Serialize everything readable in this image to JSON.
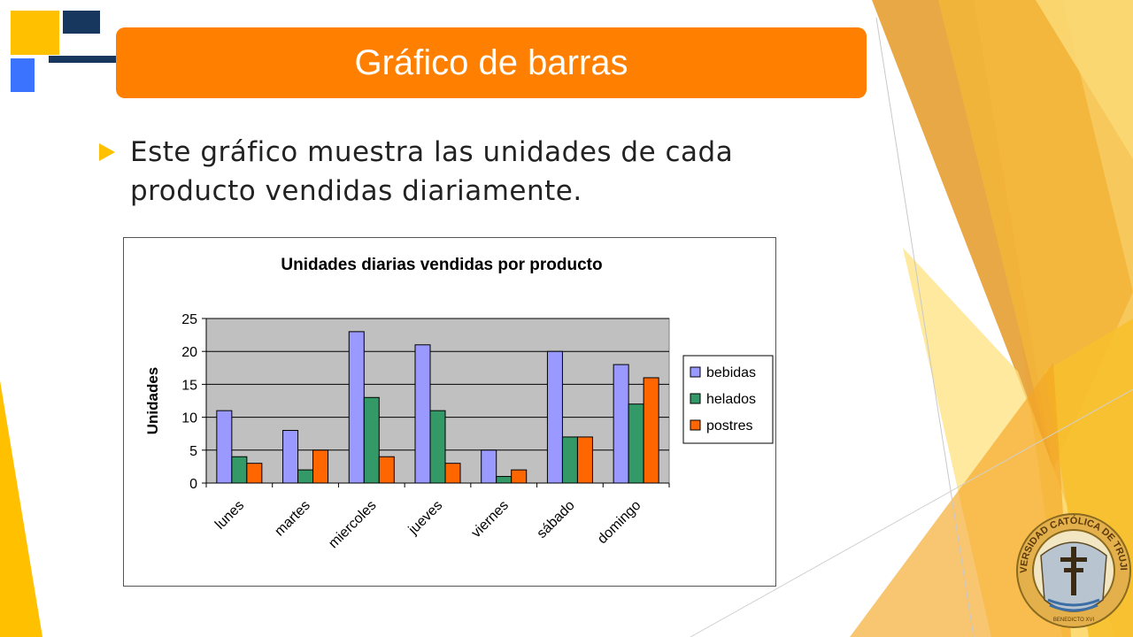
{
  "slide": {
    "title": "Gráfico de barras",
    "bullet": "Este gráfico muestra las unidades de cada producto vendidas diariamente."
  },
  "colors": {
    "title_bar": "#ff7f00",
    "bullet_arrow": "#ffc000",
    "accent_yellow": "#ffc000",
    "accent_blue": "#17375e",
    "plot_area": "#c0c0c0"
  },
  "logo": {
    "ring_text": "UNIVERSIDAD CATÓLICA DE TRUJILLO",
    "motto": "BENEDICTO XVI"
  },
  "chart_data": {
    "type": "bar",
    "title": "Unidades diarias vendidas por producto",
    "xlabel": "",
    "ylabel": "Unidades",
    "ylim": [
      0,
      25
    ],
    "yticks": [
      0,
      5,
      10,
      15,
      20,
      25
    ],
    "grid": true,
    "legend_position": "right",
    "categories": [
      "lunes",
      "martes",
      "miercoles",
      "jueves",
      "viernes",
      "sábado",
      "domingo"
    ],
    "series": [
      {
        "name": "bebidas",
        "color": "#9999ff",
        "values": [
          11,
          8,
          23,
          21,
          5,
          20,
          18
        ]
      },
      {
        "name": "helados",
        "color": "#339966",
        "values": [
          4,
          2,
          13,
          11,
          1,
          7,
          12
        ]
      },
      {
        "name": "postres",
        "color": "#ff6600",
        "values": [
          3,
          5,
          4,
          3,
          2,
          7,
          16
        ]
      }
    ]
  }
}
